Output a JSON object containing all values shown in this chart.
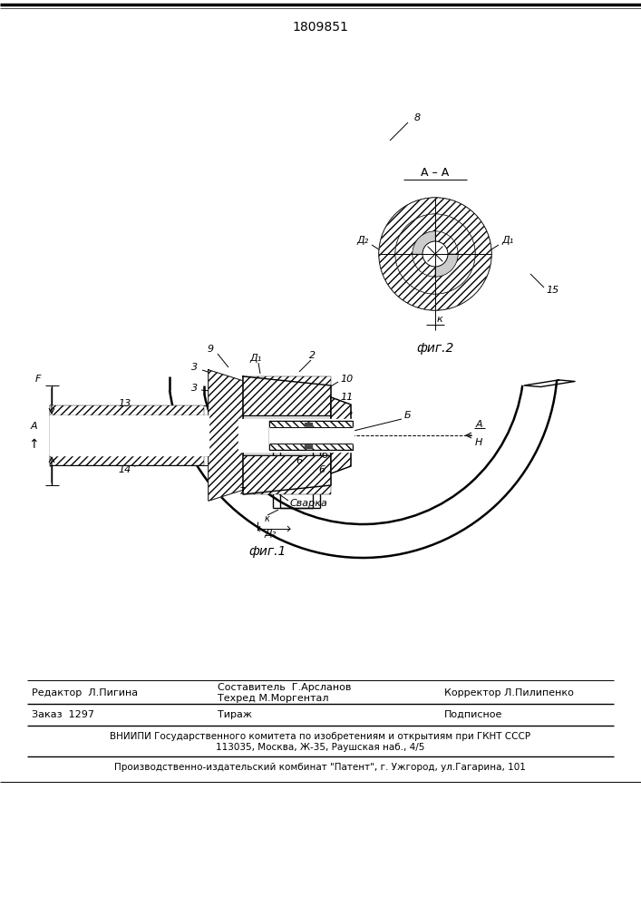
{
  "patent_number": "1809851",
  "background": "#ffffff",
  "fig1_label": "фиг.1",
  "fig2_label": "фиг.2",
  "section_label": "A – A",
  "weld_label": "Сварка",
  "editor_line": "Редактор  Л.Пигина",
  "composer_line1": "Составитель  Г.Арсланов",
  "composer_line2": "Техред М.Моргентал",
  "corrector_line": "Корректор Л.Пилипенко",
  "order_line": "Заказ  1297",
  "tirazh_line": "Тираж",
  "podpisnoe_line": "Подписное",
  "vniiipi_line": "ВНИИПИ Государственного комитета по изобретениям и открытиям при ГКНТ СССР",
  "address_line": "113035, Москва, Ж-35, Раушская наб., 4/5",
  "factory_line": "Производственно-издательский комбинат \"Патент\", г. Ужгород, ул.Гагарина, 101"
}
